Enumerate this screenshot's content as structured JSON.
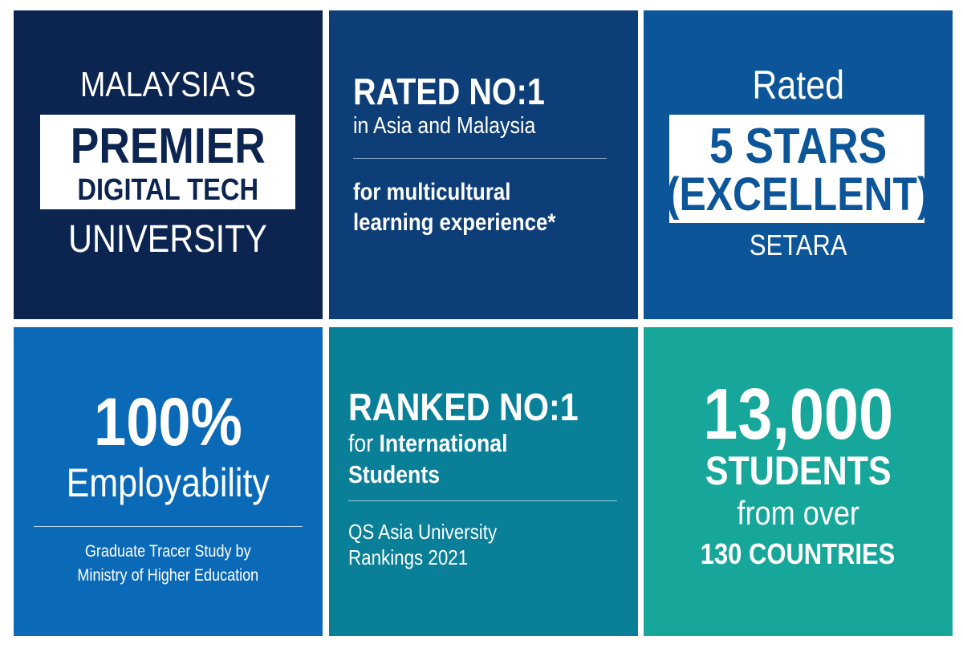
{
  "colors": {
    "tile_1": "#0c2550",
    "tile_2": "#0d3e77",
    "tile_3": "#0b5598",
    "tile_4": "#0b6ab7",
    "tile_5": "#097f98",
    "tile_6": "#17a79a"
  },
  "tiles": [
    {
      "line1": "MALAYSIA'S",
      "highlight1": "PREMIER",
      "highlight2": "DIGITAL TECH",
      "line2": "UNIVERSITY"
    },
    {
      "headline": "RATED NO:1",
      "sub": "in Asia and Malaysia",
      "detail1": "for multicultural",
      "detail2": "learning experience*"
    },
    {
      "line1": "Rated",
      "highlight1": "5 STARS",
      "highlight2": "(EXCELLENT)",
      "line2": "SETARA"
    },
    {
      "headline": "100%",
      "sub": "Employability",
      "source1": "Graduate Tracer Study by",
      "source2": "Ministry of Higher Education"
    },
    {
      "headline": "RANKED NO:1",
      "sub_prefix": "for ",
      "sub_bold": "International",
      "sub2": "Students",
      "source1": "QS Asia University",
      "source2": "Rankings 2021"
    },
    {
      "headline": "13,000",
      "sub": "STUDENTS",
      "line1": "from over",
      "line2": "130 COUNTRIES"
    }
  ]
}
